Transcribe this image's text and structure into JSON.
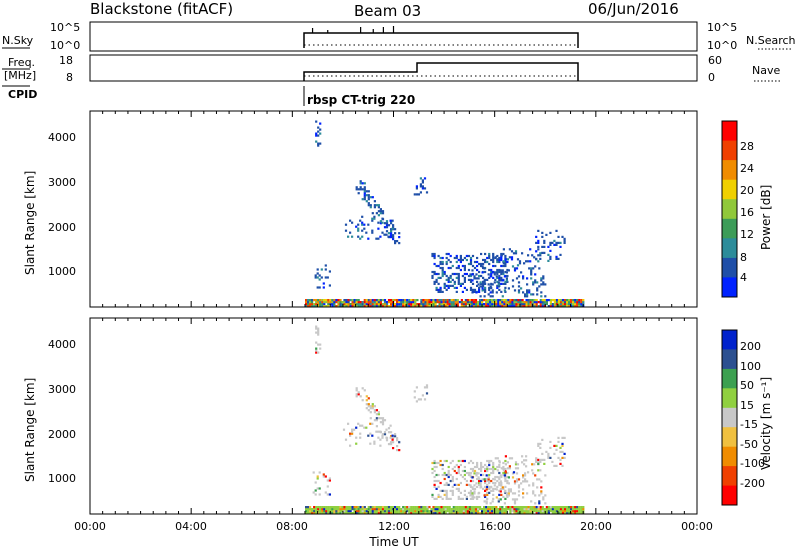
{
  "header": {
    "station": "Blackstone (fitACF)",
    "beam": "Beam 03",
    "date": "06/Jun/2016"
  },
  "strip_panels": {
    "nsky": {
      "label": "N.Sky",
      "right_label": "N.Search",
      "ticks_left": [
        "10^5",
        "10^0"
      ],
      "ticks_right": [
        "10^5",
        "10^0"
      ]
    },
    "freq": {
      "label_line1": "Freq.",
      "label_line2": "[MHz]",
      "right_label": "Nave",
      "ticks_left": [
        "18",
        "8"
      ],
      "ticks_right": [
        "60",
        "0"
      ]
    },
    "cpid": {
      "label": "CPID",
      "text": "rbsp CT-trig 220"
    }
  },
  "x_axis": {
    "label": "Time UT",
    "ticks": [
      "00:00",
      "04:00",
      "08:00",
      "12:00",
      "16:00",
      "20:00",
      "00:00"
    ]
  },
  "colors": {
    "power": [
      "#0022ff",
      "#1f4fa8",
      "#2c8c9a",
      "#3c9c58",
      "#90c83a",
      "#f0d000",
      "#f08c00",
      "#f04000",
      "#ff0000"
    ],
    "velocity": [
      "#ff0000",
      "#f04000",
      "#f08c00",
      "#f0c040",
      "#c8c8c8",
      "#90d040",
      "#3ca050",
      "#2c5090",
      "#0022cc"
    ]
  },
  "chart_data": [
    {
      "type": "heatmap",
      "name": "power",
      "ylabel": "Slant Range [km]",
      "yticks": [
        "1000",
        "2000",
        "3000",
        "4000"
      ],
      "ylim": [
        180,
        4600
      ],
      "xlim_hours": [
        0,
        24
      ],
      "colorbar_label": "Power [dB]",
      "colorbar_ticks": [
        "4",
        "8",
        "12",
        "16",
        "20",
        "24",
        "28"
      ],
      "colorbar_range": [
        0,
        32
      ]
    },
    {
      "type": "heatmap",
      "name": "velocity",
      "ylabel": "Slant Range [km]",
      "yticks": [
        "1000",
        "2000",
        "3000",
        "4000"
      ],
      "ylim": [
        180,
        4600
      ],
      "xlim_hours": [
        0,
        24
      ],
      "colorbar_label": "Velocity [m s⁻¹]",
      "colorbar_ticks": [
        "-200",
        "-100",
        "-50",
        "-15",
        "15",
        "50",
        "100",
        "200"
      ]
    }
  ]
}
